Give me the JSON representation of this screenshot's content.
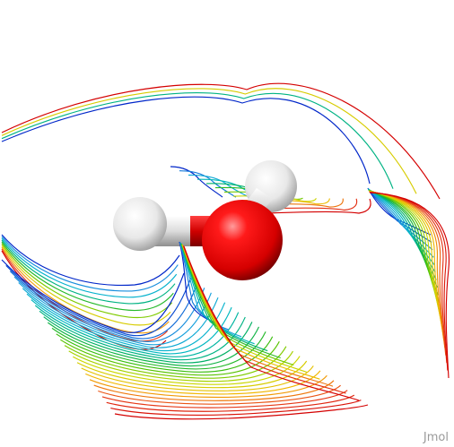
{
  "viewer": {
    "watermark": "Jmol",
    "background": "#ffffff"
  },
  "molecule": {
    "atoms": [
      {
        "element": "O",
        "color": "#e30000"
      },
      {
        "element": "H",
        "color": "#f2f2f2"
      },
      {
        "element": "H",
        "color": "#f2f2f2"
      }
    ]
  },
  "surface": {
    "style": "contour lines",
    "color_scheme": "rainbow",
    "colors": [
      "#d40000",
      "#e8401a",
      "#f4b400",
      "#c8d800",
      "#44c000",
      "#00b060",
      "#00b8c8",
      "#1b9be0",
      "#0026c9"
    ]
  }
}
